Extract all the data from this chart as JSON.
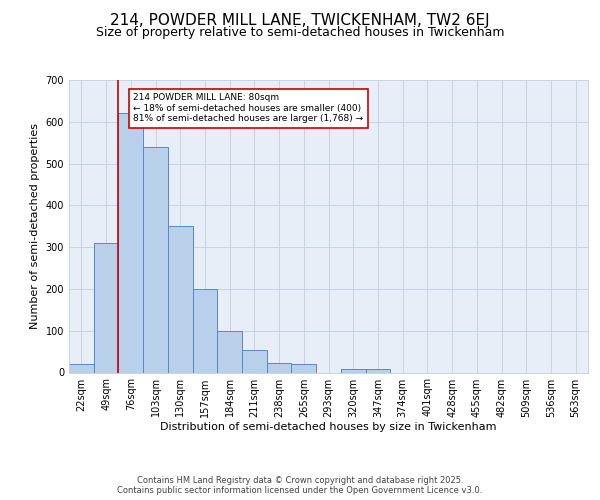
{
  "title": "214, POWDER MILL LANE, TWICKENHAM, TW2 6EJ",
  "subtitle": "Size of property relative to semi-detached houses in Twickenham",
  "xlabel": "Distribution of semi-detached houses by size in Twickenham",
  "ylabel": "Number of semi-detached properties",
  "categories": [
    "22sqm",
    "49sqm",
    "76sqm",
    "103sqm",
    "130sqm",
    "157sqm",
    "184sqm",
    "211sqm",
    "238sqm",
    "265sqm",
    "293sqm",
    "320sqm",
    "347sqm",
    "374sqm",
    "401sqm",
    "428sqm",
    "455sqm",
    "482sqm",
    "509sqm",
    "536sqm",
    "563sqm"
  ],
  "values": [
    20,
    310,
    620,
    540,
    350,
    200,
    100,
    55,
    22,
    20,
    0,
    8,
    8,
    0,
    0,
    0,
    0,
    0,
    0,
    0,
    0
  ],
  "bar_color": "#b8d0ea",
  "bar_edge_color": "#5588cc",
  "grid_color": "#c8d4e4",
  "bg_color": "#e8eef8",
  "vline_color": "#cc0000",
  "annotation_text": "214 POWDER MILL LANE: 80sqm\n← 18% of semi-detached houses are smaller (400)\n81% of semi-detached houses are larger (1,768) →",
  "annotation_box_color": "#ffffff",
  "annotation_box_edge": "#cc0000",
  "footer": "Contains HM Land Registry data © Crown copyright and database right 2025.\nContains public sector information licensed under the Open Government Licence v3.0.",
  "ylim": [
    0,
    700
  ],
  "yticks": [
    0,
    100,
    200,
    300,
    400,
    500,
    600,
    700
  ],
  "title_fontsize": 11,
  "subtitle_fontsize": 9,
  "label_fontsize": 8,
  "tick_fontsize": 7,
  "annot_fontsize": 6.5,
  "footer_fontsize": 6
}
